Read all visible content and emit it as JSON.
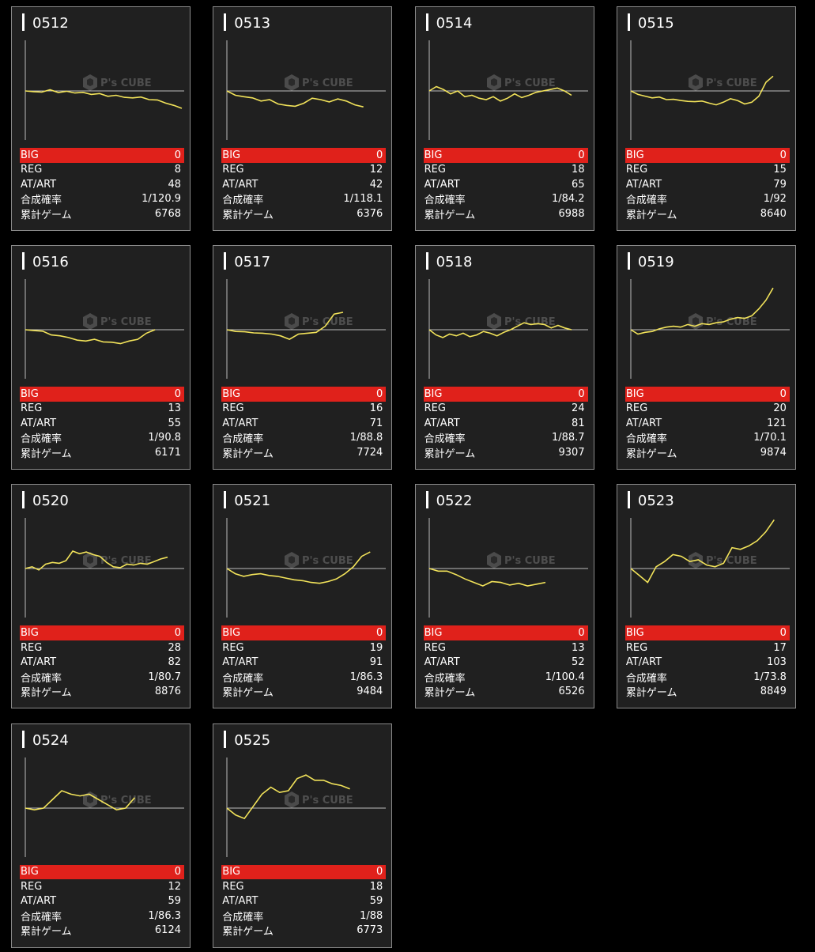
{
  "labels": {
    "big": "BIG",
    "reg": "REG",
    "atart": "AT/ART",
    "prob": "合成確率",
    "games": "累計ゲーム"
  },
  "watermark": {
    "brand": "P's CUBE"
  },
  "colors": {
    "card_bg": "#202020",
    "big_bg": "#e0211b",
    "line": "#f2e35a",
    "axis": "#bbbbbb"
  },
  "cards": [
    {
      "id": "0512",
      "big": "0",
      "reg": "8",
      "atart": "48",
      "prob": "1/120.9",
      "games": "6768",
      "trend": [
        0.0,
        -0.04,
        -0.07,
        0.07,
        -0.09,
        -0.02,
        -0.12,
        -0.08,
        -0.2,
        -0.15,
        -0.31,
        -0.25,
        -0.37,
        -0.4,
        -0.35,
        -0.5,
        -0.52,
        -0.7,
        -0.83,
        -1.0
      ]
    },
    {
      "id": "0513",
      "big": "0",
      "reg": "12",
      "atart": "42",
      "prob": "1/118.1",
      "games": "6376",
      "trend": [
        0.0,
        -0.25,
        -0.33,
        -0.4,
        -0.58,
        -0.5,
        -0.75,
        -0.83,
        -0.88,
        -0.71,
        -0.42,
        -0.5,
        -0.63,
        -0.46,
        -0.58,
        -0.8,
        -0.92
      ]
    },
    {
      "id": "0514",
      "big": "0",
      "reg": "18",
      "atart": "65",
      "prob": "1/84.2",
      "games": "6988",
      "trend": [
        0.0,
        0.25,
        0.08,
        -0.17,
        0.0,
        -0.33,
        -0.25,
        -0.42,
        -0.5,
        -0.33,
        -0.58,
        -0.42,
        -0.17,
        -0.38,
        -0.25,
        -0.08,
        0.0,
        0.08,
        0.17,
        0.0,
        -0.25
      ]
    },
    {
      "id": "0515",
      "big": "0",
      "reg": "15",
      "atart": "79",
      "prob": "1/92",
      "games": "8640",
      "trend": [
        0.0,
        -0.2,
        -0.3,
        -0.4,
        -0.35,
        -0.5,
        -0.48,
        -0.55,
        -0.6,
        -0.62,
        -0.58,
        -0.7,
        -0.8,
        -0.65,
        -0.45,
        -0.55,
        -0.75,
        -0.65,
        -0.3,
        0.5,
        0.85
      ]
    },
    {
      "id": "0516",
      "big": "0",
      "reg": "13",
      "atart": "55",
      "prob": "1/90.8",
      "games": "6171",
      "trend": [
        0.0,
        -0.05,
        -0.08,
        -0.3,
        -0.35,
        -0.45,
        -0.6,
        -0.65,
        -0.55,
        -0.7,
        -0.72,
        -0.8,
        -0.65,
        -0.55,
        -0.2,
        0.0
      ]
    },
    {
      "id": "0517",
      "big": "0",
      "reg": "16",
      "atart": "71",
      "prob": "1/88.8",
      "games": "7724",
      "trend": [
        0.0,
        -0.1,
        -0.12,
        -0.18,
        -0.2,
        -0.25,
        -0.35,
        -0.55,
        -0.25,
        -0.2,
        -0.15,
        0.2,
        0.9,
        1.0
      ]
    },
    {
      "id": "0518",
      "big": "0",
      "reg": "24",
      "atart": "81",
      "prob": "1/88.7",
      "games": "9307",
      "trend": [
        0.0,
        -0.3,
        -0.45,
        -0.25,
        -0.35,
        -0.2,
        -0.4,
        -0.3,
        -0.1,
        -0.2,
        -0.35,
        -0.15,
        0.0,
        0.2,
        0.4,
        0.3,
        0.35,
        0.3,
        0.1,
        0.25,
        0.1,
        0.0
      ]
    },
    {
      "id": "0519",
      "big": "0",
      "reg": "20",
      "atart": "121",
      "prob": "1/70.1",
      "games": "9874",
      "trend": [
        0.0,
        -0.25,
        -0.15,
        -0.1,
        0.05,
        0.15,
        0.2,
        0.15,
        0.3,
        0.2,
        0.35,
        0.3,
        0.4,
        0.45,
        0.6,
        0.7,
        0.65,
        0.8,
        1.2,
        1.7,
        2.4
      ]
    },
    {
      "id": "0520",
      "big": "0",
      "reg": "28",
      "atart": "82",
      "prob": "1/80.7",
      "games": "8876",
      "trend": [
        0.0,
        0.1,
        -0.08,
        0.25,
        0.35,
        0.3,
        0.45,
        1.0,
        0.85,
        0.95,
        0.8,
        0.7,
        0.35,
        0.1,
        0.05,
        0.25,
        0.2,
        0.3,
        0.25,
        0.4,
        0.55,
        0.65
      ]
    },
    {
      "id": "0521",
      "big": "0",
      "reg": "19",
      "atart": "91",
      "prob": "1/86.3",
      "games": "9484",
      "trend": [
        0.0,
        -0.3,
        -0.45,
        -0.35,
        -0.3,
        -0.4,
        -0.45,
        -0.55,
        -0.65,
        -0.7,
        -0.8,
        -0.85,
        -0.75,
        -0.6,
        -0.3,
        0.1,
        0.7,
        0.95
      ]
    },
    {
      "id": "0522",
      "big": "0",
      "reg": "13",
      "atart": "52",
      "prob": "1/100.4",
      "games": "6526",
      "trend": [
        0.0,
        -0.15,
        -0.15,
        -0.35,
        -0.6,
        -0.8,
        -1.0,
        -0.75,
        -0.8,
        -0.95,
        -0.85,
        -1.0,
        -0.9,
        -0.8
      ]
    },
    {
      "id": "0523",
      "big": "0",
      "reg": "17",
      "atart": "103",
      "prob": "1/73.8",
      "games": "8849",
      "trend": [
        0.0,
        -0.4,
        -0.8,
        0.1,
        0.4,
        0.8,
        0.7,
        0.4,
        0.5,
        0.2,
        0.1,
        0.3,
        1.2,
        1.1,
        1.3,
        1.6,
        2.1,
        2.8
      ]
    },
    {
      "id": "0524",
      "big": "0",
      "reg": "12",
      "atart": "59",
      "prob": "1/86.3",
      "games": "6124",
      "trend": [
        0.0,
        -0.1,
        0.0,
        0.5,
        1.0,
        0.8,
        0.7,
        0.8,
        0.5,
        0.2,
        -0.1,
        0.0,
        0.6
      ]
    },
    {
      "id": "0525",
      "big": "0",
      "reg": "18",
      "atart": "59",
      "prob": "1/88",
      "games": "6773",
      "trend": [
        0.0,
        -0.4,
        -0.6,
        0.1,
        0.8,
        1.2,
        0.9,
        1.0,
        1.7,
        1.9,
        1.6,
        1.6,
        1.4,
        1.3,
        1.1
      ]
    }
  ]
}
